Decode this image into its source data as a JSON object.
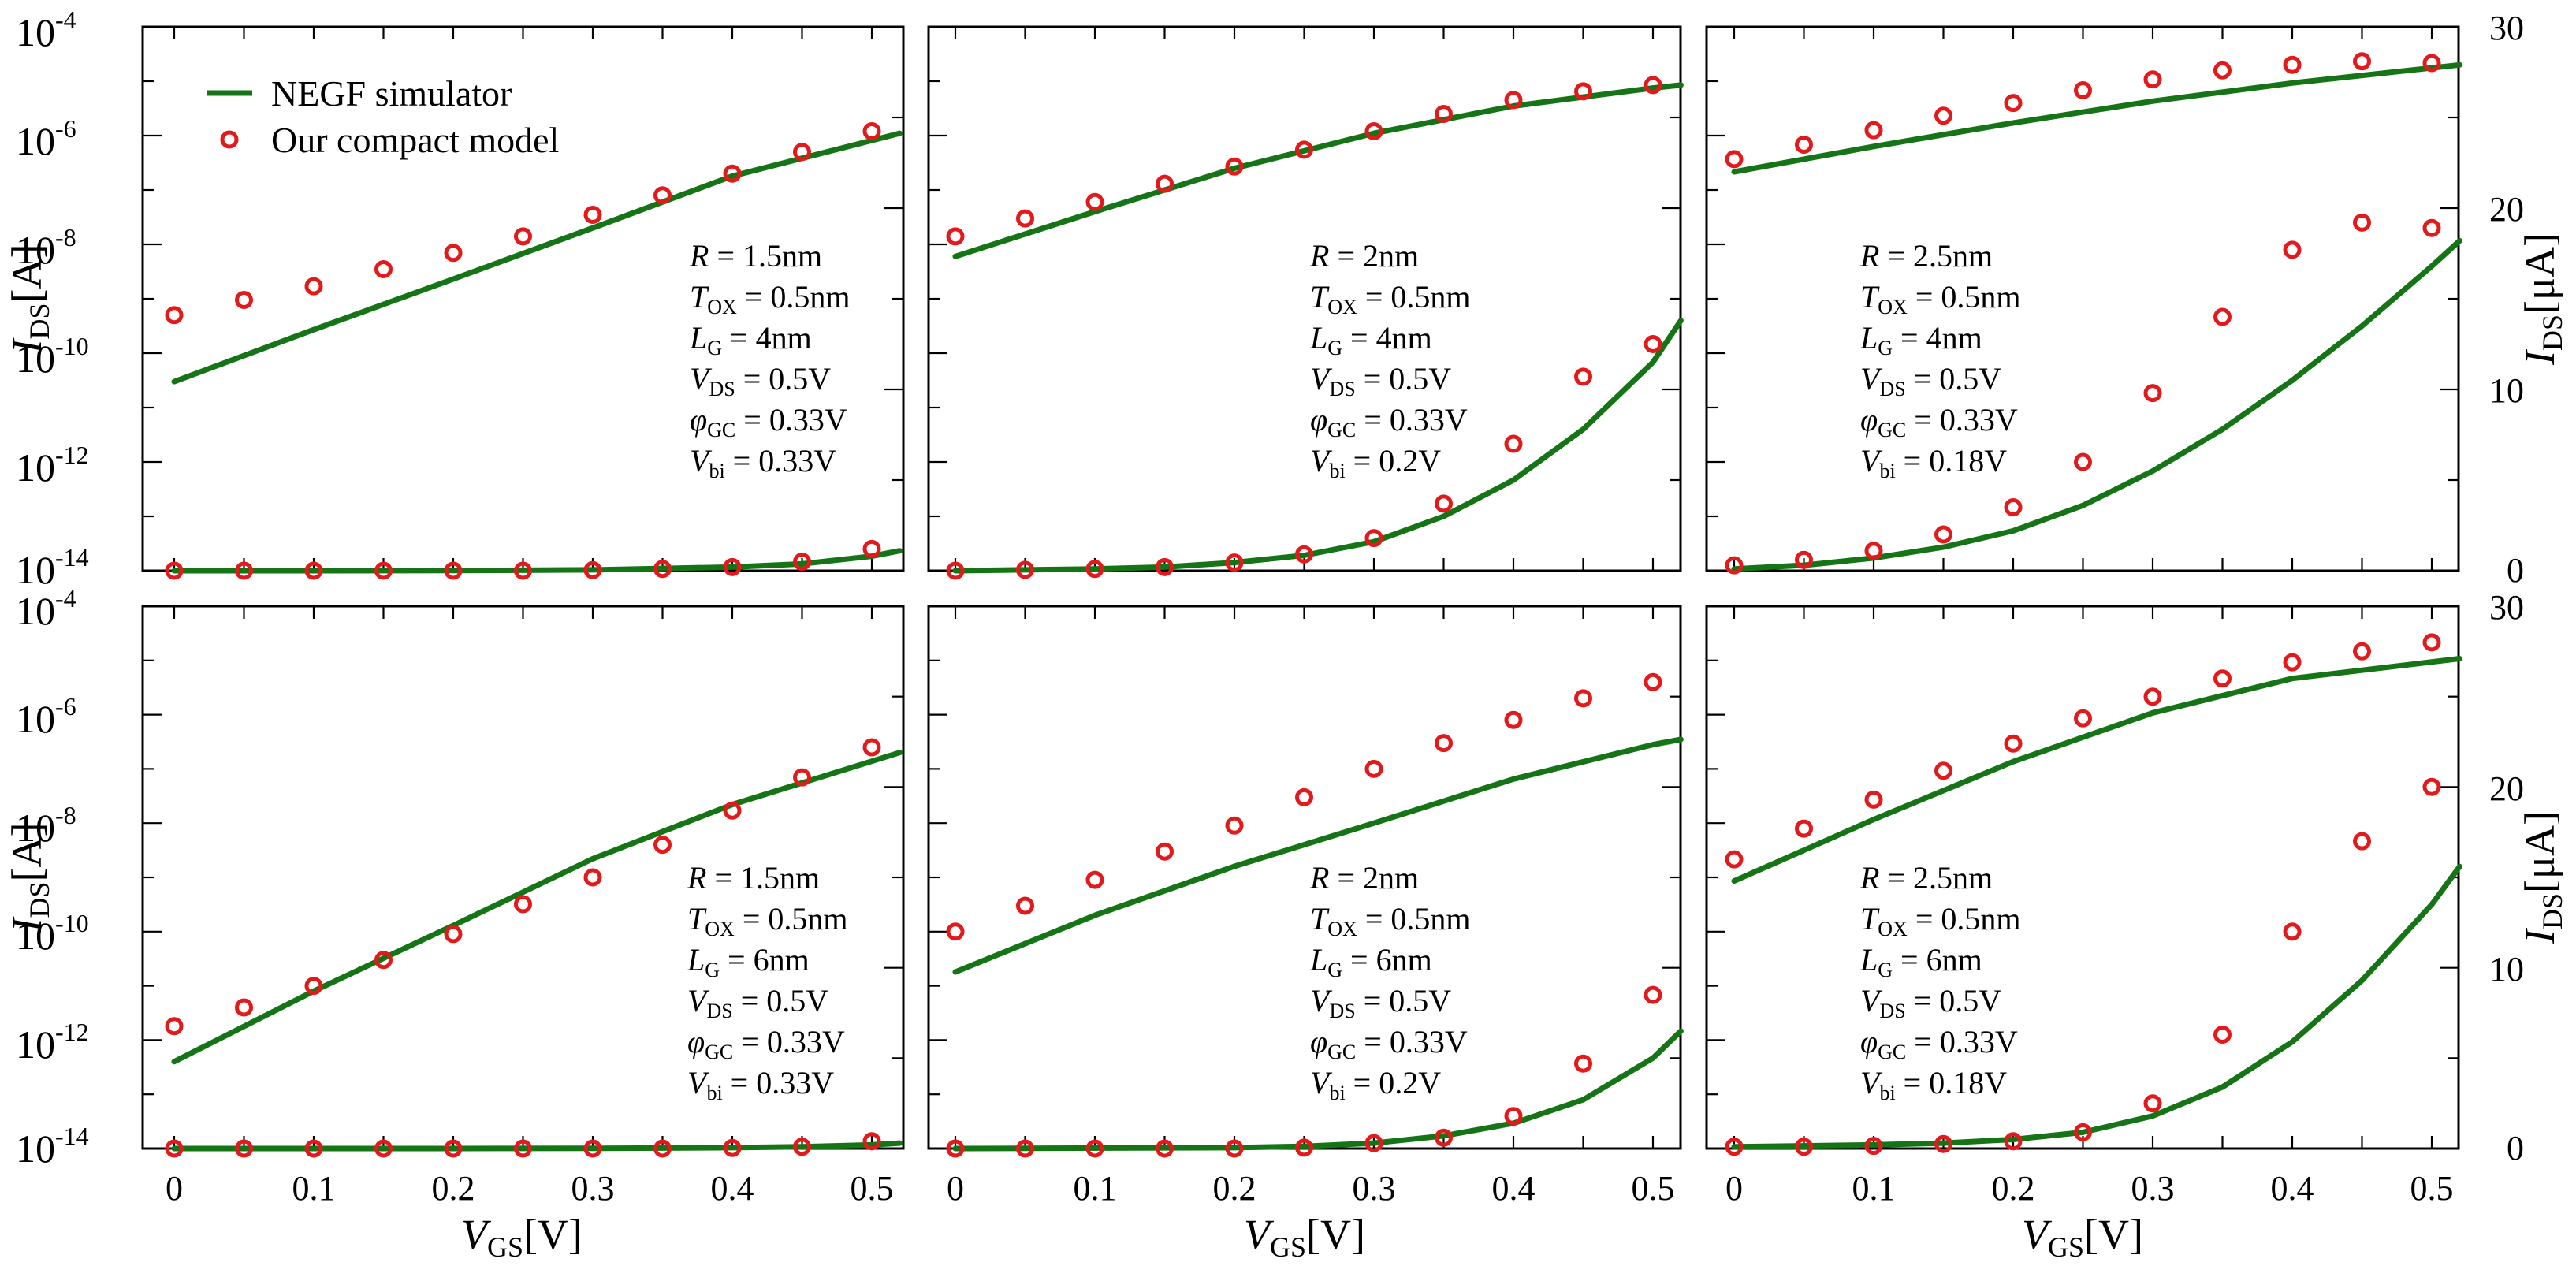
{
  "legend": {
    "line_label": "NEGF simulator",
    "marker_label": "Our compact model",
    "line_color": "#157415",
    "marker_color": "#e31a1c"
  },
  "axes": {
    "xlabel_main": "V",
    "xlabel_sub": "GS",
    "xlabel_unit": "[V]",
    "ylabel_left_main": "I",
    "ylabel_left_sub": "DS",
    "ylabel_left_unit": "[A]",
    "ylabel_right_main": "I",
    "ylabel_right_sub": "DS",
    "ylabel_right_unit": "[μA]",
    "x_ticks": [
      "0",
      "0.1",
      "0.2",
      "0.3",
      "0.4",
      "0.5"
    ],
    "log_tick_base": "10",
    "log_tick_exponents": [
      "-4",
      "-6",
      "-8",
      "-10",
      "-12",
      "-14"
    ],
    "lin_ticks": [
      "30",
      "20",
      "10",
      "0"
    ]
  },
  "chart_data": [
    {
      "panel": "top-left",
      "type": "line+scatter",
      "x_range": [
        -0.02,
        0.52
      ],
      "log_ylim": [
        1e-14,
        0.0001
      ],
      "lin_ylim": [
        0,
        30
      ],
      "annotation": {
        "R": "1.5nm",
        "Tox": "0.5nm",
        "LG": "4nm",
        "VDS": "0.5V",
        "phiGC": "0.33V",
        "Vbi": "0.33V"
      },
      "negf_log": {
        "x": [
          0,
          0.1,
          0.2,
          0.3,
          0.4,
          0.52
        ],
        "y": [
          3e-11,
          2.7e-10,
          2.3e-09,
          2e-08,
          1.8e-07,
          1.1e-06
        ]
      },
      "model_log": {
        "x": [
          0,
          0.05,
          0.1,
          0.15,
          0.2,
          0.25,
          0.3,
          0.35,
          0.4,
          0.45,
          0.5
        ],
        "y": [
          5e-10,
          9.5e-10,
          1.7e-09,
          3.5e-09,
          7e-09,
          1.4e-08,
          3.5e-08,
          8e-08,
          2e-07,
          5e-07,
          1.2e-06
        ]
      },
      "negf_lin": {
        "x": [
          0,
          0.1,
          0.2,
          0.3,
          0.4,
          0.45,
          0.5,
          0.52
        ],
        "y": [
          0,
          0,
          0.01,
          0.05,
          0.2,
          0.38,
          0.8,
          1.1
        ]
      },
      "model_lin": {
        "x": [
          0,
          0.05,
          0.1,
          0.15,
          0.2,
          0.25,
          0.3,
          0.35,
          0.4,
          0.45,
          0.5
        ],
        "y": [
          0,
          0,
          0,
          0,
          0,
          0,
          0.03,
          0.1,
          0.2,
          0.5,
          1.2
        ]
      }
    },
    {
      "panel": "top-middle",
      "type": "line+scatter",
      "x_range": [
        -0.02,
        0.52
      ],
      "log_ylim": [
        1e-14,
        0.0001
      ],
      "lin_ylim": [
        0,
        30
      ],
      "annotation": {
        "R": "2nm",
        "Tox": "0.5nm",
        "LG": "4nm",
        "VDS": "0.5V",
        "phiGC": "0.33V",
        "Vbi": "0.2V"
      },
      "negf_log": {
        "x": [
          0,
          0.1,
          0.2,
          0.3,
          0.4,
          0.5,
          0.52
        ],
        "y": [
          6e-09,
          4e-08,
          2.5e-07,
          1.1e-06,
          3.5e-06,
          7.5e-06,
          8.5e-06
        ]
      },
      "model_log": {
        "x": [
          0,
          0.05,
          0.1,
          0.15,
          0.2,
          0.25,
          0.3,
          0.35,
          0.4,
          0.45,
          0.5
        ],
        "y": [
          1.4e-08,
          3e-08,
          6e-08,
          1.3e-07,
          2.7e-07,
          5.5e-07,
          1.2e-06,
          2.5e-06,
          4.5e-06,
          6.5e-06,
          8.5e-06
        ]
      },
      "negf_lin": {
        "x": [
          0,
          0.1,
          0.15,
          0.2,
          0.25,
          0.3,
          0.35,
          0.4,
          0.45,
          0.5,
          0.52
        ],
        "y": [
          0,
          0.1,
          0.2,
          0.45,
          0.85,
          1.6,
          3,
          5,
          7.8,
          11.5,
          13.8
        ]
      },
      "model_lin": {
        "x": [
          0,
          0.05,
          0.1,
          0.15,
          0.2,
          0.25,
          0.3,
          0.35,
          0.4,
          0.45,
          0.5
        ],
        "y": [
          0,
          0.05,
          0.1,
          0.2,
          0.45,
          0.9,
          1.8,
          3.7,
          7,
          10.7,
          12.5
        ]
      }
    },
    {
      "panel": "top-right",
      "type": "line+scatter",
      "x_range": [
        -0.02,
        0.52
      ],
      "log_ylim": [
        1e-14,
        0.0001
      ],
      "lin_ylim": [
        0,
        30
      ],
      "annotation": {
        "R": "2.5nm",
        "Tox": "0.5nm",
        "LG": "4nm",
        "VDS": "0.5V",
        "phiGC": "0.33V",
        "Vbi": "0.18V"
      },
      "negf_lin": {
        "x": [
          0,
          0.05,
          0.1,
          0.15,
          0.2,
          0.25,
          0.3,
          0.35,
          0.4,
          0.45,
          0.5,
          0.52
        ],
        "y": [
          0.1,
          0.3,
          0.7,
          1.3,
          2.2,
          3.6,
          5.5,
          7.8,
          10.5,
          13.5,
          16.8,
          18.2
        ]
      },
      "model_lin": {
        "x": [
          0,
          0.05,
          0.1,
          0.15,
          0.2,
          0.25,
          0.3,
          0.35,
          0.4,
          0.45,
          0.5
        ],
        "y": [
          0.3,
          0.6,
          1.1,
          2,
          3.5,
          6,
          9.8,
          14,
          17.7,
          19.2,
          18.9
        ]
      },
      "negf_right_axis": {
        "x": [
          0,
          0.1,
          0.2,
          0.3,
          0.4,
          0.52
        ],
        "y": [
          22,
          23.4,
          24.7,
          25.9,
          26.9,
          27.9
        ]
      },
      "model_right_axis": {
        "x": [
          0,
          0.05,
          0.1,
          0.15,
          0.2,
          0.25,
          0.3,
          0.35,
          0.4,
          0.45,
          0.5
        ],
        "y": [
          22.7,
          23.5,
          24.3,
          25.1,
          25.8,
          26.5,
          27.1,
          27.6,
          27.9,
          28.1,
          28.0
        ]
      }
    },
    {
      "panel": "bottom-left",
      "type": "line+scatter",
      "x_range": [
        -0.02,
        0.52
      ],
      "log_ylim": [
        1e-14,
        0.0001
      ],
      "lin_ylim": [
        0,
        30
      ],
      "annotation": {
        "R": "1.5nm",
        "Tox": "0.5nm",
        "LG": "6nm",
        "VDS": "0.5V",
        "phiGC": "0.33V",
        "Vbi": "0.33V"
      },
      "negf_log": {
        "x": [
          0,
          0.1,
          0.2,
          0.3,
          0.4,
          0.52
        ],
        "y": [
          4e-13,
          8e-12,
          1.3e-10,
          2.2e-09,
          2.2e-08,
          2e-07
        ]
      },
      "model_log": {
        "x": [
          0,
          0.05,
          0.1,
          0.15,
          0.2,
          0.25,
          0.3,
          0.35,
          0.4,
          0.45,
          0.5
        ],
        "y": [
          1.8e-12,
          4e-12,
          1e-11,
          3e-11,
          9e-11,
          3.2e-10,
          1e-09,
          4e-09,
          1.7e-08,
          7e-08,
          2.5e-07
        ]
      },
      "negf_lin": {
        "x": [
          0,
          0.2,
          0.3,
          0.4,
          0.45,
          0.5,
          0.52
        ],
        "y": [
          0,
          0,
          0.01,
          0.05,
          0.1,
          0.2,
          0.3
        ]
      },
      "model_lin": {
        "x": [
          0,
          0.05,
          0.1,
          0.15,
          0.2,
          0.25,
          0.3,
          0.35,
          0.4,
          0.45,
          0.5
        ],
        "y": [
          0,
          0,
          0,
          0,
          0,
          0,
          0,
          0,
          0.03,
          0.1,
          0.4
        ]
      }
    },
    {
      "panel": "bottom-middle",
      "type": "line+scatter",
      "x_range": [
        -0.02,
        0.52
      ],
      "log_ylim": [
        1e-14,
        0.0001
      ],
      "lin_ylim": [
        0,
        30
      ],
      "annotation": {
        "R": "2nm",
        "Tox": "0.5nm",
        "LG": "6nm",
        "VDS": "0.5V",
        "phiGC": "0.33V",
        "Vbi": "0.2V"
      },
      "negf_log": {
        "x": [
          0,
          0.1,
          0.2,
          0.3,
          0.4,
          0.5,
          0.52
        ],
        "y": [
          1.8e-11,
          2e-10,
          1.6e-09,
          1e-08,
          6.5e-08,
          2.8e-07,
          3.5e-07
        ]
      },
      "model_log": {
        "x": [
          0,
          0.05,
          0.1,
          0.15,
          0.2,
          0.25,
          0.3,
          0.35,
          0.4,
          0.45,
          0.5
        ],
        "y": [
          1e-10,
          3e-10,
          9e-10,
          3e-09,
          9e-09,
          3e-08,
          1e-07,
          3e-07,
          8e-07,
          2e-06,
          4e-06
        ]
      },
      "negf_lin": {
        "x": [
          0,
          0.2,
          0.25,
          0.3,
          0.35,
          0.4,
          0.45,
          0.5,
          0.52
        ],
        "y": [
          0,
          0.05,
          0.12,
          0.3,
          0.7,
          1.4,
          2.7,
          5,
          6.5
        ]
      },
      "model_lin": {
        "x": [
          0,
          0.05,
          0.1,
          0.15,
          0.2,
          0.25,
          0.3,
          0.35,
          0.4,
          0.45,
          0.5
        ],
        "y": [
          0,
          0,
          0,
          0,
          0,
          0.05,
          0.3,
          0.6,
          1.8,
          4.7,
          8.5
        ]
      }
    },
    {
      "panel": "bottom-right",
      "type": "line+scatter",
      "x_range": [
        -0.02,
        0.52
      ],
      "log_ylim": [
        1e-14,
        0.0001
      ],
      "lin_ylim": [
        0,
        30
      ],
      "annotation": {
        "R": "2.5nm",
        "Tox": "0.5nm",
        "LG": "6nm",
        "VDS": "0.5V",
        "phiGC": "0.33V",
        "Vbi": "0.18V"
      },
      "negf_lin": {
        "x": [
          0,
          0.1,
          0.15,
          0.2,
          0.25,
          0.3,
          0.35,
          0.4,
          0.45,
          0.5,
          0.52
        ],
        "y": [
          0.1,
          0.2,
          0.3,
          0.5,
          0.9,
          1.8,
          3.4,
          5.9,
          9.3,
          13.5,
          15.6
        ]
      },
      "model_lin": {
        "x": [
          0,
          0.05,
          0.1,
          0.15,
          0.2,
          0.25,
          0.3,
          0.35,
          0.4,
          0.45,
          0.5
        ],
        "y": [
          0.1,
          0.1,
          0.15,
          0.25,
          0.4,
          0.9,
          2.5,
          6.3,
          12,
          17,
          20
        ]
      },
      "negf_right_axis": {
        "x": [
          0,
          0.1,
          0.2,
          0.3,
          0.4,
          0.52
        ],
        "y": [
          14.8,
          18.2,
          21.4,
          24.1,
          26.0,
          27.1
        ]
      },
      "model_right_axis": {
        "x": [
          0,
          0.05,
          0.1,
          0.15,
          0.2,
          0.25,
          0.3,
          0.35,
          0.4,
          0.45,
          0.5
        ],
        "y": [
          16,
          17.7,
          19.3,
          20.9,
          22.4,
          23.8,
          25,
          26,
          26.9,
          27.5,
          28
        ]
      }
    }
  ]
}
